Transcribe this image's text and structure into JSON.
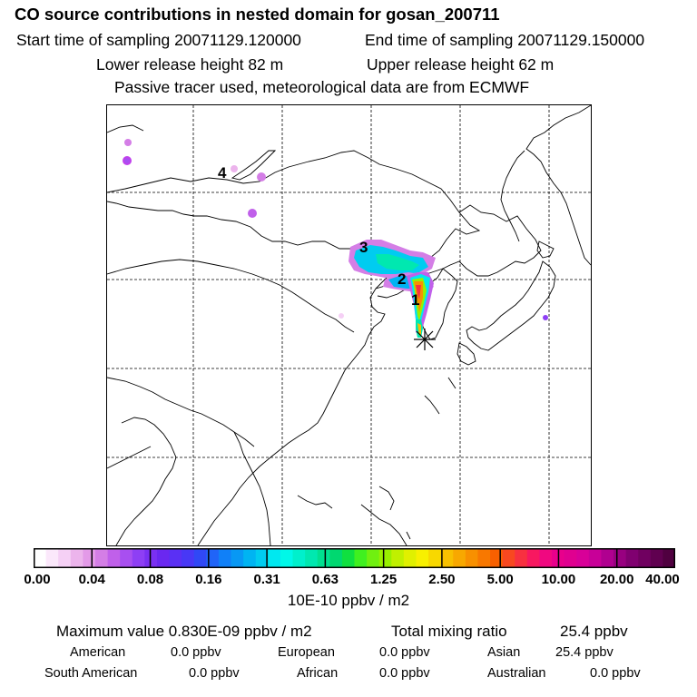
{
  "title": "CO  source contributions in nested domain for gosan_200711",
  "sampling": {
    "start": "Start time of sampling 20071129.120000",
    "end": "End time of sampling 20071129.150000"
  },
  "release": {
    "lower": "Lower release height   82 m",
    "upper": "Upper release height   62 m"
  },
  "tracer_note": "Passive tracer used, meteorological data are from ECMWF",
  "map": {
    "station_marker": "star-icon",
    "labels": [
      "4",
      "3",
      "2",
      "1"
    ]
  },
  "colorbar": {
    "unit": "10E-10 ppbv / m2",
    "ticks": [
      "0.00",
      "0.04",
      "0.08",
      "0.16",
      "0.31",
      "0.63",
      "1.25",
      "2.50",
      "5.00",
      "10.00",
      "20.00",
      "40.00"
    ],
    "colors": [
      "#ffffff",
      "#fbe8fb",
      "#f5d0f5",
      "#ecb4ec",
      "#e39ae8",
      "#d47ee6",
      "#c060ea",
      "#a84ff0",
      "#8e3ff4",
      "#7a30f2",
      "#6a28f0",
      "#5a30f4",
      "#4838f6",
      "#3048f6",
      "#2064f8",
      "#1080f8",
      "#0898f4",
      "#00b4f2",
      "#00ccf0",
      "#00e8f0",
      "#00f8e8",
      "#00f0cc",
      "#00e8b0",
      "#00e090",
      "#00d870",
      "#10e040",
      "#40f020",
      "#70f010",
      "#98f000",
      "#c0f000",
      "#e0f000",
      "#f8f000",
      "#f8d800",
      "#f8c000",
      "#f8a800",
      "#f89000",
      "#f87800",
      "#f86000",
      "#f84820",
      "#f83040",
      "#f81860",
      "#f00880",
      "#e8008c",
      "#e00090",
      "#d80098",
      "#c80098",
      "#b00090",
      "#980080",
      "#800070",
      "#700060",
      "#600050",
      "#500040"
    ]
  },
  "summary": {
    "max_value": "Maximum value  0.830E-09 ppbv / m2",
    "total_label": "Total mixing ratio",
    "total_value": "25.4 ppbv"
  },
  "regions": [
    {
      "name": "American",
      "value": "0.0 ppbv"
    },
    {
      "name": "European",
      "value": "0.0 ppbv"
    },
    {
      "name": "Asian",
      "value": "25.4 ppbv"
    },
    {
      "name": "South American",
      "value": "0.0 ppbv"
    },
    {
      "name": "African",
      "value": "0.0 ppbv"
    },
    {
      "name": "Australian",
      "value": "0.0 ppbv"
    }
  ]
}
